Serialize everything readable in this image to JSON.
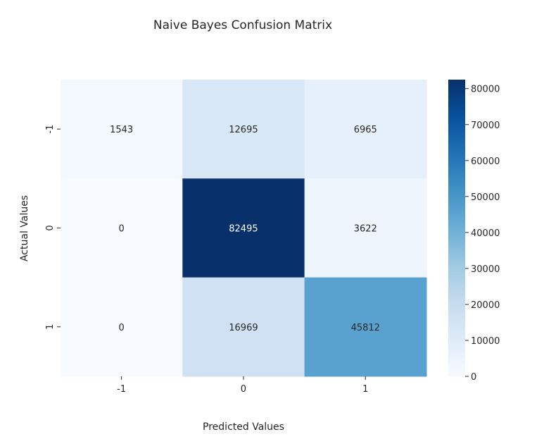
{
  "chart_data": {
    "type": "heatmap",
    "title": "Naive Bayes Confusion Matrix",
    "xlabel": "Predicted Values",
    "ylabel": "Actual Values",
    "x_categories": [
      "-1",
      "0",
      "1"
    ],
    "y_categories": [
      "-1",
      "0",
      "1"
    ],
    "values": [
      [
        1543,
        12695,
        6965
      ],
      [
        0,
        82495,
        3622
      ],
      [
        0,
        16969,
        45812
      ]
    ],
    "cell_labels": [
      [
        "1543",
        "12695",
        "6965"
      ],
      [
        "0",
        "82495",
        "3622"
      ],
      [
        "0",
        "16969",
        "45812"
      ]
    ],
    "colorbar": {
      "range": [
        0,
        82495
      ],
      "ticks": [
        0,
        10000,
        20000,
        30000,
        40000,
        50000,
        60000,
        70000,
        80000
      ],
      "tick_labels": [
        "0",
        "10000",
        "20000",
        "30000",
        "40000",
        "50000",
        "60000",
        "70000",
        "80000"
      ],
      "colormap": "Blues"
    },
    "grid": false,
    "colors": {
      "low": "#f7fbff",
      "high": "#08306b",
      "text_dark": "#262626",
      "text_light": "#ffffff"
    }
  }
}
